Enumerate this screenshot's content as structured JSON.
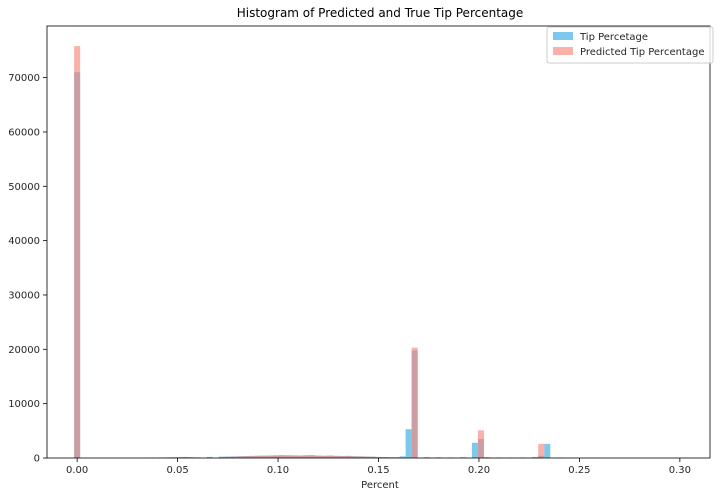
{
  "chart_data": {
    "type": "bar",
    "title": "Histogram of Predicted and True Tip Percentage",
    "xlabel": "Percent",
    "ylabel": "",
    "xlim": [
      -0.015,
      0.315
    ],
    "ylim": [
      0,
      79500
    ],
    "xticks": [
      0.0,
      0.05,
      0.1,
      0.15,
      0.2,
      0.25,
      0.3
    ],
    "xtick_labels": [
      "0.00",
      "0.05",
      "0.10",
      "0.15",
      "0.20",
      "0.25",
      "0.30"
    ],
    "yticks": [
      0,
      10000,
      20000,
      30000,
      40000,
      50000,
      60000,
      70000
    ],
    "ytick_labels": [
      "0",
      "10000",
      "20000",
      "30000",
      "40000",
      "50000",
      "60000",
      "70000"
    ],
    "grid": false,
    "legend_position": "top-right",
    "bin_width": 0.003,
    "series": [
      {
        "name": "Tip Percetage",
        "color": "#5dbcea",
        "x": [
          0.0,
          0.036,
          0.042,
          0.045,
          0.048,
          0.051,
          0.054,
          0.057,
          0.06,
          0.066,
          0.072,
          0.075,
          0.078,
          0.081,
          0.084,
          0.087,
          0.09,
          0.093,
          0.096,
          0.099,
          0.102,
          0.105,
          0.108,
          0.111,
          0.114,
          0.117,
          0.12,
          0.123,
          0.126,
          0.129,
          0.132,
          0.135,
          0.138,
          0.141,
          0.144,
          0.147,
          0.15,
          0.153,
          0.156,
          0.159,
          0.162,
          0.165,
          0.168,
          0.174,
          0.18,
          0.186,
          0.192,
          0.198,
          0.201,
          0.204,
          0.21,
          0.216,
          0.222,
          0.228,
          0.231,
          0.234,
          0.24,
          0.246,
          0.252,
          0.258
        ],
        "values": [
          71000,
          80,
          100,
          120,
          150,
          180,
          200,
          150,
          120,
          200,
          250,
          280,
          300,
          320,
          350,
          380,
          400,
          420,
          450,
          480,
          500,
          480,
          460,
          450,
          480,
          500,
          420,
          400,
          450,
          380,
          350,
          400,
          320,
          300,
          280,
          250,
          200,
          180,
          150,
          150,
          300,
          5300,
          19800,
          150,
          120,
          100,
          150,
          2800,
          3500,
          150,
          100,
          80,
          100,
          200,
          400,
          2600,
          100,
          80,
          60,
          80
        ]
      },
      {
        "name": "Predicted Tip Percentage",
        "color": "#f8877c",
        "x": [
          0.0,
          0.066,
          0.072,
          0.075,
          0.078,
          0.081,
          0.084,
          0.087,
          0.09,
          0.093,
          0.096,
          0.099,
          0.102,
          0.105,
          0.108,
          0.111,
          0.114,
          0.117,
          0.12,
          0.123,
          0.126,
          0.129,
          0.132,
          0.135,
          0.138,
          0.141,
          0.144,
          0.147,
          0.15,
          0.153,
          0.156,
          0.168,
          0.174,
          0.18,
          0.186,
          0.192,
          0.201,
          0.231
        ],
        "values": [
          75800,
          120,
          180,
          220,
          260,
          300,
          340,
          380,
          420,
          440,
          460,
          480,
          520,
          500,
          480,
          460,
          500,
          520,
          460,
          420,
          440,
          400,
          380,
          350,
          320,
          300,
          260,
          220,
          180,
          150,
          100,
          20300,
          120,
          100,
          80,
          60,
          5100,
          2600
        ]
      }
    ]
  }
}
